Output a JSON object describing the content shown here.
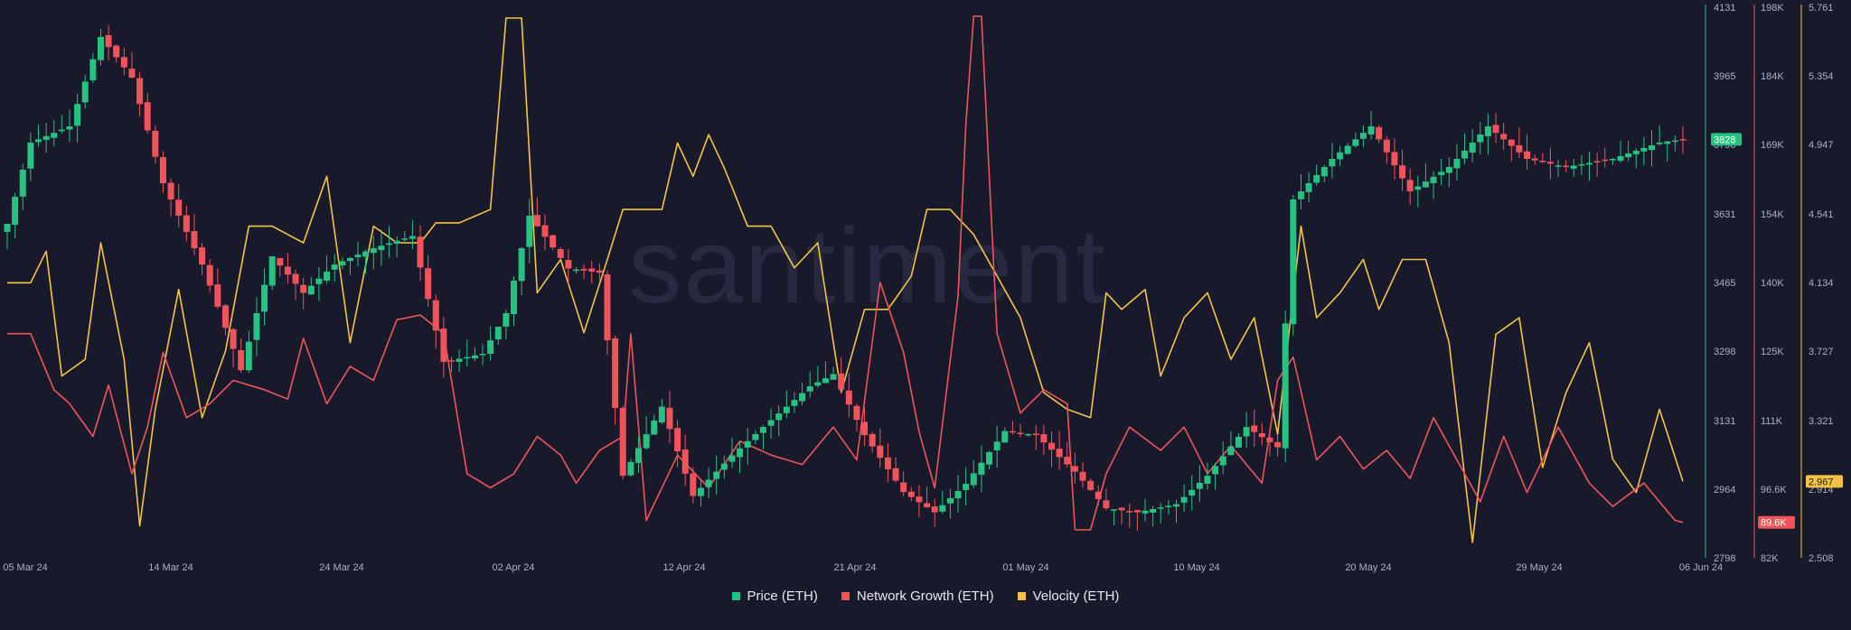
{
  "chart_data": {
    "type": "line",
    "watermark": "santiment",
    "x_ticks": [
      "05 Mar 24",
      "14 Mar 24",
      "24 Mar 24",
      "02 Apr 24",
      "12 Apr 24",
      "21 Apr 24",
      "01 May 24",
      "10 May 24",
      "20 May 24",
      "29 May 24",
      "06 Jun 24"
    ],
    "axes": [
      {
        "id": "price",
        "color": "#26c281",
        "min": 2798,
        "max": 4131,
        "ticks": [
          "4131",
          "3965",
          "3798",
          "3631",
          "3465",
          "3298",
          "3131",
          "2964",
          "2798"
        ]
      },
      {
        "id": "network",
        "color": "#f0545a",
        "min": 82000,
        "max": 198000,
        "ticks": [
          "198K",
          "184K",
          "169K",
          "154K",
          "140K",
          "125K",
          "111K",
          "96.6K",
          "82K"
        ]
      },
      {
        "id": "velocity",
        "color": "#f5c344",
        "min": 2.508,
        "max": 5.761,
        "ticks": [
          "5.761",
          "5.354",
          "4.947",
          "4.541",
          "4.134",
          "3.727",
          "3.321",
          "2.914",
          "2.508"
        ]
      }
    ],
    "last_value_badges": {
      "price": "3828",
      "network": "89.6K",
      "velocity": "2.967"
    },
    "series": [
      {
        "name": "Price (ETH)",
        "axis": "price",
        "style": "candlestick",
        "color_up": "#26c281",
        "color_down": "#f0545a",
        "anchors": [
          [
            0,
            3620
          ],
          [
            3,
            3820
          ],
          [
            8,
            3860
          ],
          [
            12,
            4080
          ],
          [
            16,
            3980
          ],
          [
            20,
            3720
          ],
          [
            25,
            3520
          ],
          [
            30,
            3260
          ],
          [
            34,
            3540
          ],
          [
            38,
            3450
          ],
          [
            42,
            3520
          ],
          [
            47,
            3560
          ],
          [
            52,
            3590
          ],
          [
            56,
            3280
          ],
          [
            61,
            3300
          ],
          [
            64,
            3400
          ],
          [
            67,
            3640
          ],
          [
            72,
            3510
          ],
          [
            76,
            3500
          ],
          [
            79,
            3000
          ],
          [
            84,
            3170
          ],
          [
            88,
            2950
          ],
          [
            93,
            3050
          ],
          [
            97,
            3120
          ],
          [
            103,
            3220
          ],
          [
            106,
            3250
          ],
          [
            110,
            3100
          ],
          [
            115,
            2960
          ],
          [
            119,
            2910
          ],
          [
            123,
            2980
          ],
          [
            128,
            3110
          ],
          [
            132,
            3100
          ],
          [
            137,
            3010
          ],
          [
            141,
            2920
          ],
          [
            145,
            2910
          ],
          [
            150,
            2930
          ],
          [
            154,
            3000
          ],
          [
            159,
            3120
          ],
          [
            163,
            3070
          ],
          [
            165,
            3680
          ],
          [
            170,
            3780
          ],
          [
            175,
            3860
          ],
          [
            180,
            3700
          ],
          [
            185,
            3760
          ],
          [
            190,
            3860
          ],
          [
            195,
            3780
          ],
          [
            200,
            3760
          ],
          [
            206,
            3780
          ],
          [
            212,
            3820
          ],
          [
            215,
            3828
          ]
        ]
      },
      {
        "name": "Network Growth (ETH)",
        "axis": "network",
        "style": "line",
        "color": "#f0545a",
        "anchors": [
          [
            0,
            130000
          ],
          [
            3,
            130000
          ],
          [
            6,
            118000
          ],
          [
            8,
            115000
          ],
          [
            11,
            108000
          ],
          [
            13,
            119000
          ],
          [
            16,
            100000
          ],
          [
            18,
            110000
          ],
          [
            20,
            126000
          ],
          [
            23,
            112000
          ],
          [
            26,
            115000
          ],
          [
            29,
            120000
          ],
          [
            33,
            118000
          ],
          [
            36,
            116000
          ],
          [
            38,
            129000
          ],
          [
            41,
            115000
          ],
          [
            44,
            123000
          ],
          [
            47,
            120000
          ],
          [
            50,
            133000
          ],
          [
            53,
            134000
          ],
          [
            56,
            130000
          ],
          [
            59,
            100000
          ],
          [
            62,
            97000
          ],
          [
            65,
            100000
          ],
          [
            68,
            108000
          ],
          [
            71,
            104000
          ],
          [
            73,
            98000
          ],
          [
            76,
            105000
          ],
          [
            79,
            108000
          ],
          [
            80,
            130000
          ],
          [
            82,
            90000
          ],
          [
            86,
            104000
          ],
          [
            90,
            97000
          ],
          [
            94,
            107000
          ],
          [
            98,
            104000
          ],
          [
            102,
            102000
          ],
          [
            106,
            110000
          ],
          [
            109,
            103000
          ],
          [
            112,
            141000
          ],
          [
            115,
            126000
          ],
          [
            117,
            109000
          ],
          [
            119,
            97000
          ],
          [
            122,
            138000
          ],
          [
            123,
            175000
          ],
          [
            124,
            198000
          ],
          [
            125,
            198000
          ],
          [
            127,
            130000
          ],
          [
            130,
            113000
          ],
          [
            133,
            118000
          ],
          [
            136,
            115000
          ],
          [
            137,
            88000
          ],
          [
            139,
            88000
          ],
          [
            141,
            100000
          ],
          [
            144,
            110000
          ],
          [
            148,
            105000
          ],
          [
            151,
            110000
          ],
          [
            154,
            100000
          ],
          [
            157,
            106000
          ],
          [
            161,
            98000
          ],
          [
            163,
            120000
          ],
          [
            165,
            125000
          ],
          [
            168,
            103000
          ],
          [
            171,
            108000
          ],
          [
            174,
            101000
          ],
          [
            177,
            105000
          ],
          [
            180,
            99000
          ],
          [
            183,
            112000
          ],
          [
            186,
            103000
          ],
          [
            189,
            94000
          ],
          [
            192,
            108000
          ],
          [
            195,
            96000
          ],
          [
            199,
            110000
          ],
          [
            203,
            98000
          ],
          [
            206,
            93000
          ],
          [
            210,
            98000
          ],
          [
            214,
            90000
          ],
          [
            215,
            89600
          ]
        ]
      },
      {
        "name": "Velocity (ETH)",
        "axis": "velocity",
        "style": "line",
        "color": "#f5c344",
        "anchors": [
          [
            0,
            4.16
          ],
          [
            3,
            4.16
          ],
          [
            5,
            4.35
          ],
          [
            7,
            3.6
          ],
          [
            10,
            3.7
          ],
          [
            12,
            4.4
          ],
          [
            15,
            3.7
          ],
          [
            17,
            2.7
          ],
          [
            19,
            3.4
          ],
          [
            22,
            4.12
          ],
          [
            25,
            3.35
          ],
          [
            28,
            3.75
          ],
          [
            31,
            4.5
          ],
          [
            34,
            4.5
          ],
          [
            38,
            4.4
          ],
          [
            41,
            4.8
          ],
          [
            44,
            3.8
          ],
          [
            47,
            4.5
          ],
          [
            50,
            4.4
          ],
          [
            53,
            4.4
          ],
          [
            55,
            4.52
          ],
          [
            58,
            4.52
          ],
          [
            62,
            4.6
          ],
          [
            64,
            5.75
          ],
          [
            66,
            5.75
          ],
          [
            68,
            4.1
          ],
          [
            71,
            4.3
          ],
          [
            74,
            3.86
          ],
          [
            77,
            4.3
          ],
          [
            79,
            4.6
          ],
          [
            82,
            4.6
          ],
          [
            84,
            4.6
          ],
          [
            86,
            5.0
          ],
          [
            88,
            4.8
          ],
          [
            90,
            5.05
          ],
          [
            92,
            4.85
          ],
          [
            95,
            4.5
          ],
          [
            98,
            4.5
          ],
          [
            101,
            4.25
          ],
          [
            104,
            4.4
          ],
          [
            107,
            3.5
          ],
          [
            110,
            4.0
          ],
          [
            113,
            4.0
          ],
          [
            116,
            4.2
          ],
          [
            118,
            4.6
          ],
          [
            121,
            4.6
          ],
          [
            124,
            4.45
          ],
          [
            127,
            4.2
          ],
          [
            130,
            3.95
          ],
          [
            133,
            3.5
          ],
          [
            136,
            3.4
          ],
          [
            139,
            3.35
          ],
          [
            141,
            4.1
          ],
          [
            143,
            4.0
          ],
          [
            146,
            4.12
          ],
          [
            148,
            3.6
          ],
          [
            151,
            3.95
          ],
          [
            154,
            4.1
          ],
          [
            157,
            3.7
          ],
          [
            160,
            3.95
          ],
          [
            163,
            3.25
          ],
          [
            166,
            4.5
          ],
          [
            168,
            3.95
          ],
          [
            171,
            4.1
          ],
          [
            174,
            4.3
          ],
          [
            176,
            4.0
          ],
          [
            179,
            4.3
          ],
          [
            182,
            4.3
          ],
          [
            185,
            3.8
          ],
          [
            188,
            2.6
          ],
          [
            191,
            3.85
          ],
          [
            194,
            3.95
          ],
          [
            197,
            3.05
          ],
          [
            200,
            3.5
          ],
          [
            203,
            3.8
          ],
          [
            206,
            3.1
          ],
          [
            209,
            2.9
          ],
          [
            212,
            3.4
          ],
          [
            215,
            2.967
          ]
        ]
      }
    ]
  },
  "legend": [
    {
      "label": "Price (ETH)",
      "color": "#26c281"
    },
    {
      "label": "Network Growth (ETH)",
      "color": "#f0545a"
    },
    {
      "label": "Velocity (ETH)",
      "color": "#f5c344"
    }
  ]
}
